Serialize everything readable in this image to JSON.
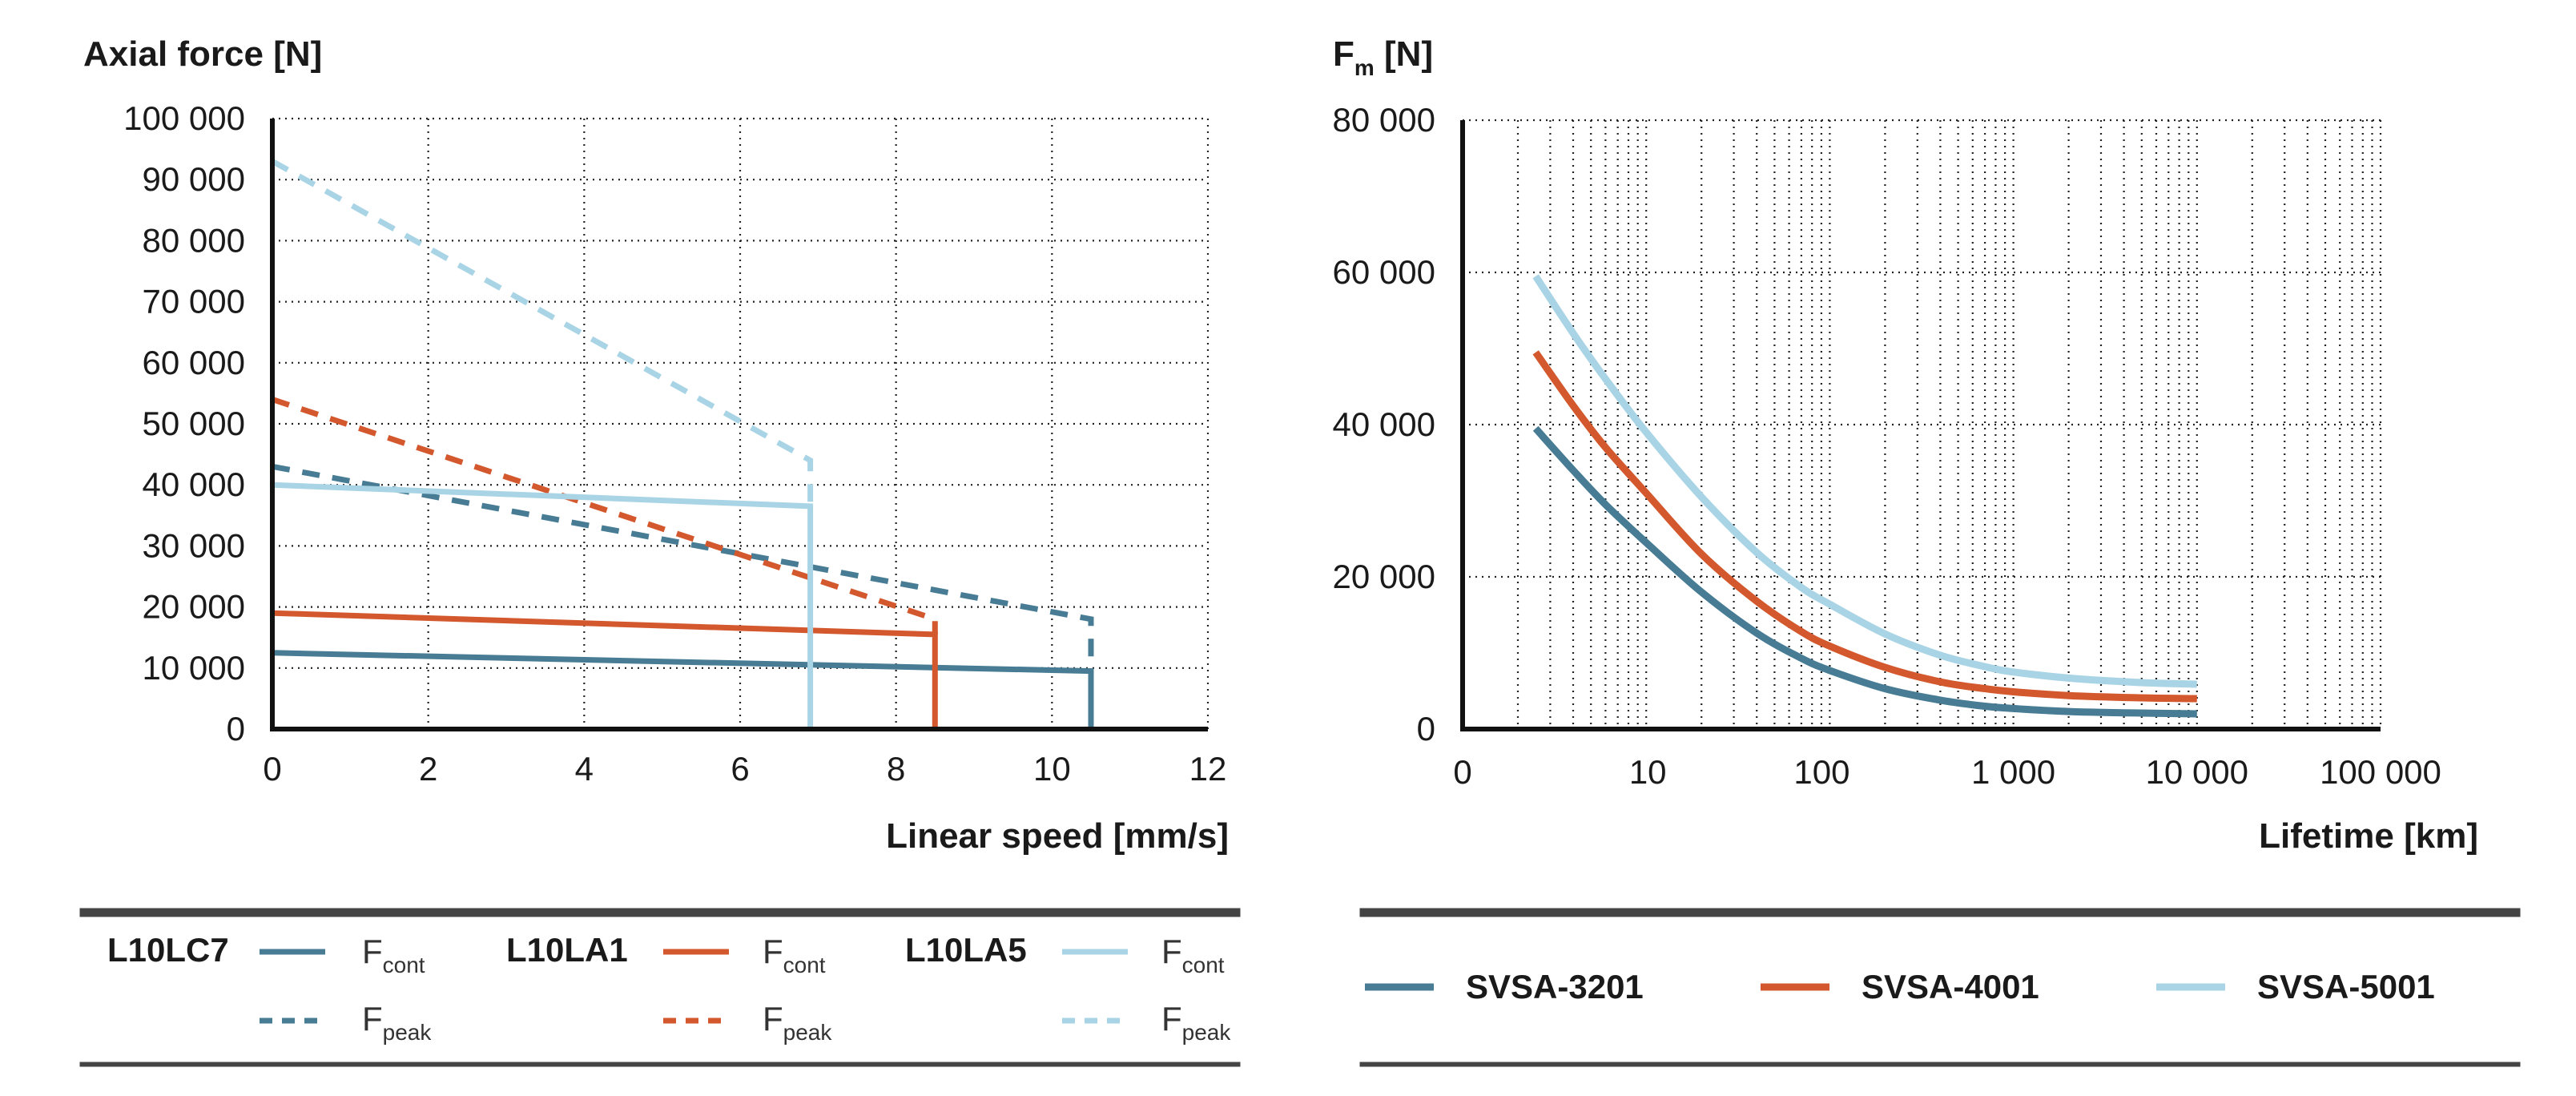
{
  "colors": {
    "dark": "#477c94",
    "mid": "#d4582d",
    "light": "#a9d4e5"
  },
  "chart_data": [
    {
      "type": "line",
      "title": "Axial force [N]",
      "xlabel": "Linear speed [mm/s]",
      "ylabel": "Axial force [N]",
      "xlim": [
        0,
        12
      ],
      "ylim": [
        0,
        100000
      ],
      "xticks": [
        "0",
        "2",
        "4",
        "6",
        "8",
        "10",
        "12"
      ],
      "yticks": [
        "0",
        "10 000",
        "20 000",
        "30 000",
        "40 000",
        "50 000",
        "60 000",
        "70 000",
        "80 000",
        "90 000",
        "100 000"
      ],
      "grid": true,
      "series": [
        {
          "name": "L10LC7 F cont",
          "style": "solid",
          "color": "dark",
          "x": [
            0,
            10.5,
            10.5
          ],
          "y": [
            12500,
            9500,
            0
          ]
        },
        {
          "name": "L10LC7 F peak",
          "style": "dashed",
          "color": "dark",
          "x": [
            0,
            10.5,
            10.5
          ],
          "y": [
            43000,
            18000,
            9500
          ]
        },
        {
          "name": "L10LA1 F cont",
          "style": "solid",
          "color": "mid",
          "x": [
            0,
            8.5,
            8.5
          ],
          "y": [
            19000,
            15500,
            0
          ]
        },
        {
          "name": "L10LA1 F peak",
          "style": "dashed",
          "color": "mid",
          "x": [
            0,
            8.5,
            8.5
          ],
          "y": [
            54000,
            18000,
            15500
          ]
        },
        {
          "name": "L10LA5 F cont",
          "style": "solid",
          "color": "light",
          "x": [
            0,
            6.9,
            6.9
          ],
          "y": [
            40000,
            36500,
            0
          ]
        },
        {
          "name": "L10LA5 F peak",
          "style": "dashed",
          "color": "light",
          "x": [
            0,
            6.9,
            6.9
          ],
          "y": [
            93000,
            44000,
            36500
          ]
        }
      ],
      "legend": {
        "placement": "bottom",
        "groups": [
          {
            "name": "L10LC7",
            "color": "dark",
            "cont": "F",
            "cont_sub": "cont",
            "peak": "F",
            "peak_sub": "peak"
          },
          {
            "name": "L10LA1",
            "color": "mid",
            "cont": "F",
            "cont_sub": "cont",
            "peak": "F",
            "peak_sub": "peak"
          },
          {
            "name": "L10LA5",
            "color": "light",
            "cont": "F",
            "cont_sub": "cont",
            "peak": "F",
            "peak_sub": "peak"
          }
        ]
      }
    },
    {
      "type": "line",
      "title_main": "F",
      "title_sub": "m",
      "title_unit": " [N]",
      "xlabel": "Lifetime [km]",
      "xscale": "log",
      "xlim": [
        1,
        100000
      ],
      "ylim": [
        0,
        80000
      ],
      "xticks": [
        "0",
        "10",
        "100",
        "1 000",
        "10 000",
        "100 000"
      ],
      "yticks": [
        "0",
        "20 000",
        "40 000",
        "60 000",
        "80 000"
      ],
      "grid": true,
      "series": [
        {
          "name": "SVSA-3201",
          "color": "dark",
          "x": [
            2.5,
            4,
            6,
            10,
            20,
            40,
            70,
            100,
            200,
            400,
            700,
            1000,
            2000,
            5000,
            10000
          ],
          "y": [
            39500,
            34000,
            29500,
            24500,
            18000,
            12600,
            9300,
            7700,
            5300,
            3800,
            3000,
            2700,
            2300,
            2100,
            2000
          ]
        },
        {
          "name": "SVSA-4001",
          "color": "mid",
          "x": [
            2.5,
            4,
            6,
            10,
            20,
            40,
            70,
            100,
            200,
            400,
            700,
            1000,
            2000,
            5000,
            10000
          ],
          "y": [
            49500,
            42500,
            37000,
            31000,
            23000,
            16800,
            12800,
            10900,
            8100,
            6200,
            5300,
            4900,
            4400,
            4100,
            4000
          ]
        },
        {
          "name": "SVSA-5001",
          "color": "light",
          "x": [
            2.5,
            4,
            6,
            10,
            20,
            40,
            70,
            100,
            200,
            400,
            700,
            1000,
            2000,
            5000,
            10000
          ],
          "y": [
            59500,
            52000,
            46000,
            39000,
            30500,
            23200,
            18600,
            16400,
            12500,
            9700,
            8200,
            7500,
            6700,
            6100,
            5900
          ]
        }
      ],
      "legend": {
        "placement": "bottom",
        "items": [
          {
            "name": "SVSA-3201",
            "color": "dark"
          },
          {
            "name": "SVSA-4001",
            "color": "mid"
          },
          {
            "name": "SVSA-5001",
            "color": "light"
          }
        ]
      }
    }
  ]
}
